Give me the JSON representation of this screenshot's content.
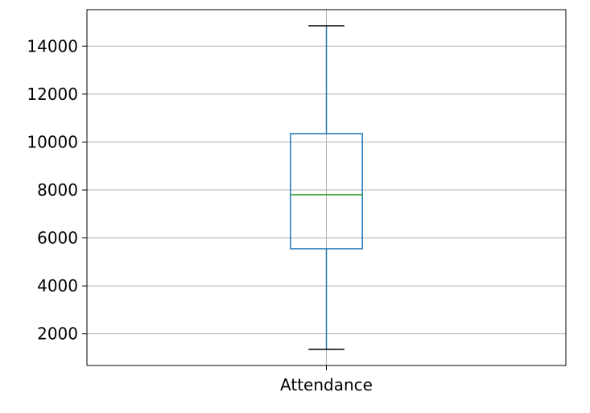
{
  "chart_data": {
    "type": "boxplot",
    "categories": [
      "Attendance"
    ],
    "series": [
      {
        "whisker_low": 1350,
        "q1": 5550,
        "median": 7800,
        "q3": 10350,
        "whisker_high": 14850
      }
    ],
    "yticks": [
      2000,
      4000,
      6000,
      8000,
      10000,
      12000,
      14000
    ],
    "ytick_labels": [
      "2000",
      "4000",
      "6000",
      "8000",
      "10000",
      "12000",
      "14000"
    ],
    "ylim": [
      680,
      15520
    ],
    "grid": true,
    "colors": {
      "box": "#1f77b4",
      "whisker": "#1f77b4",
      "median": "#2ca02c",
      "cap": "#000000",
      "grid": "#b0b0b0",
      "frame": "#000000"
    }
  }
}
